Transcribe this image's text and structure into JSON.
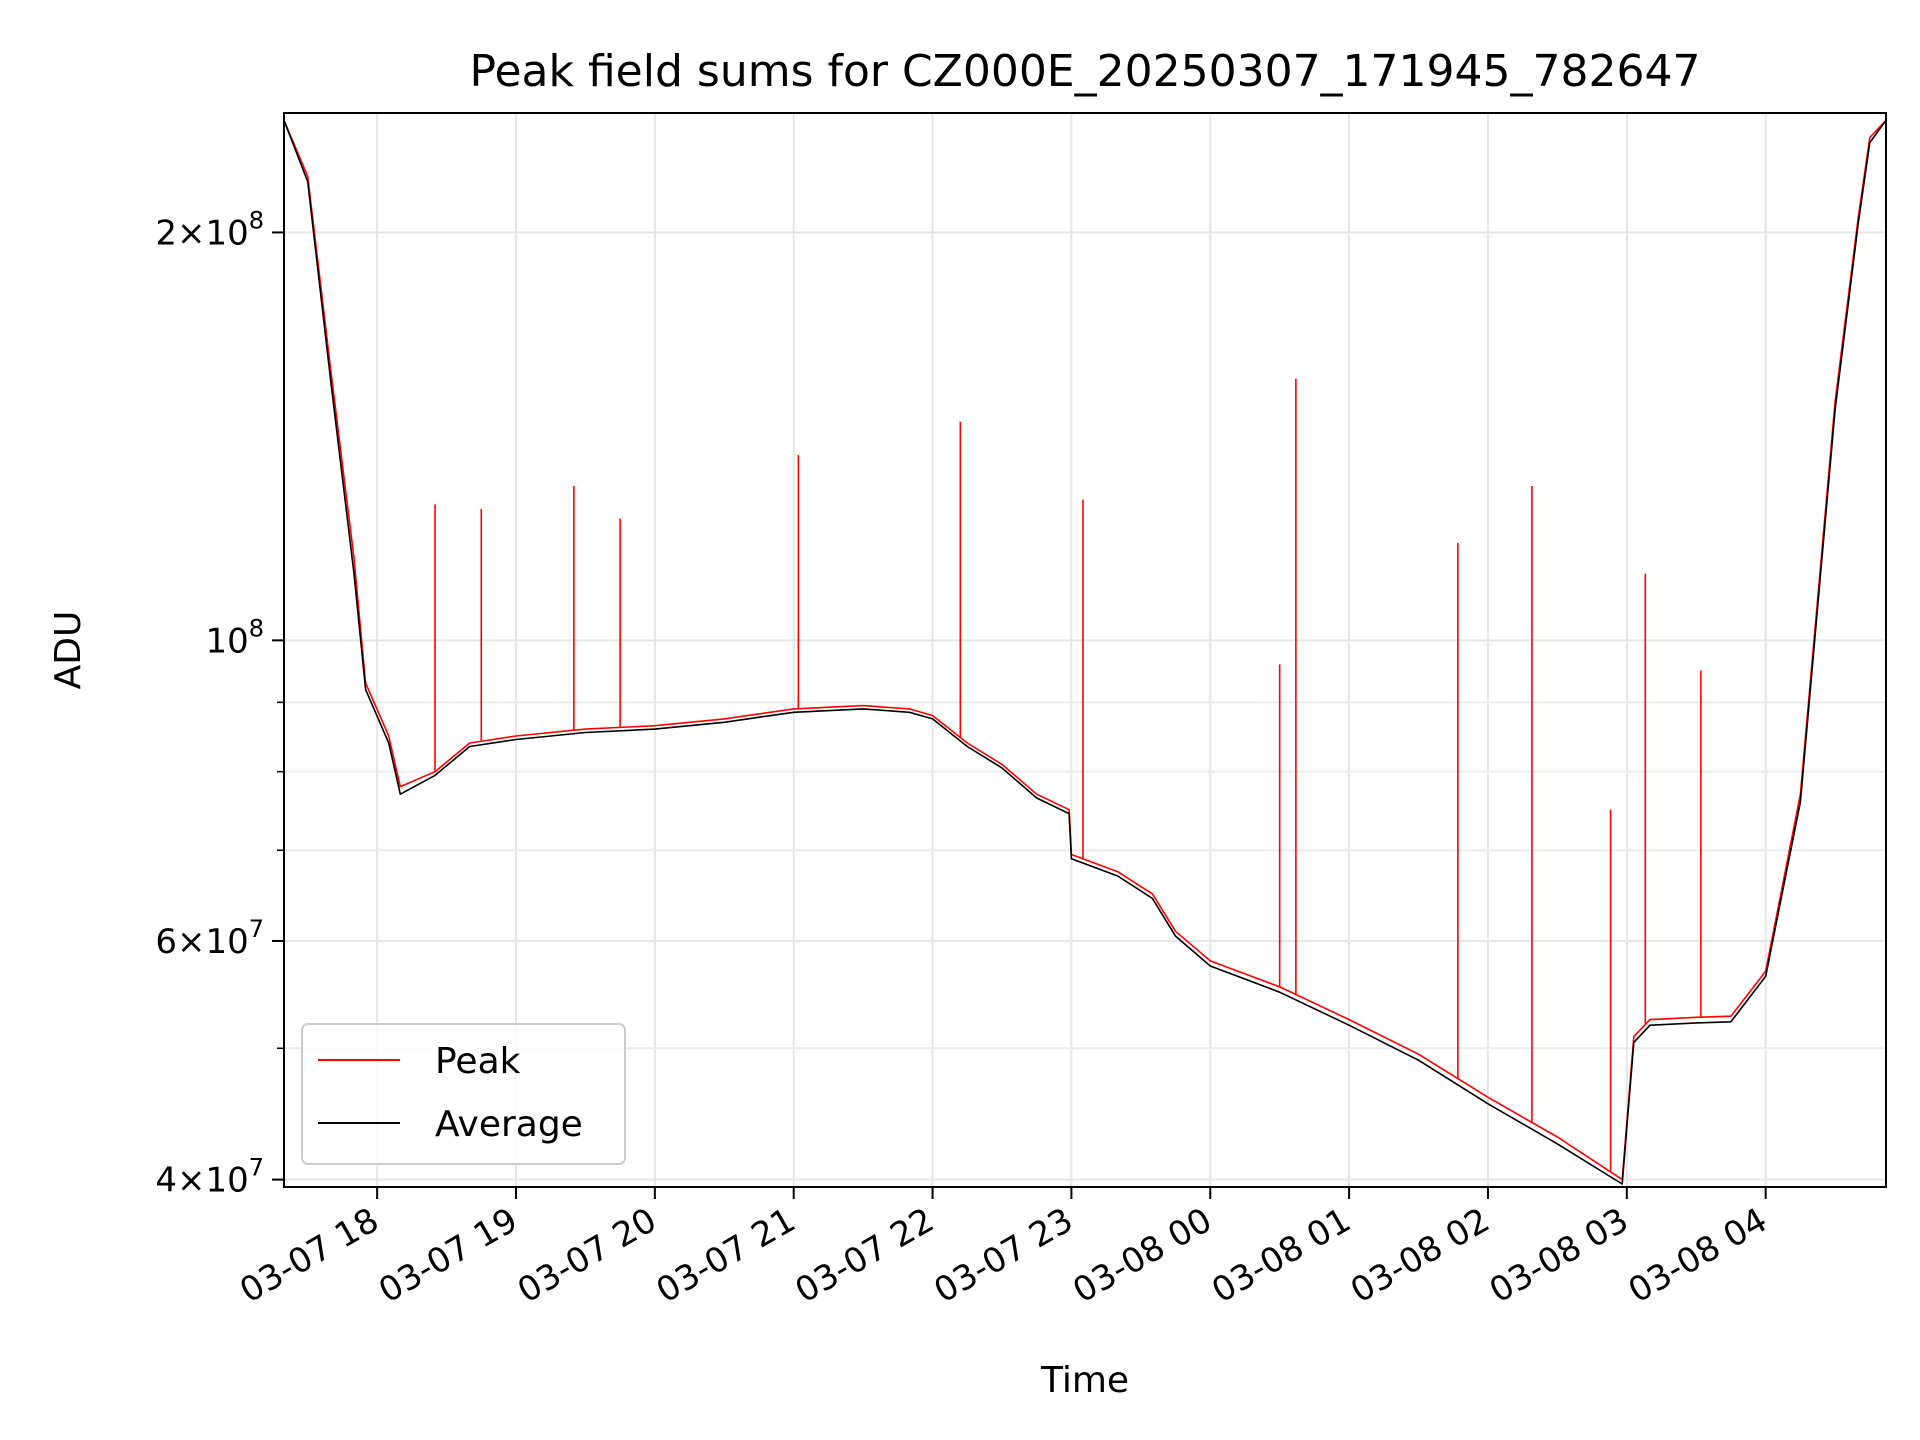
{
  "chart_data": {
    "type": "line",
    "title": "Peak field sums for CZ000E_20250307_171945_782647",
    "xlabel": "Time",
    "ylabel": "ADU",
    "y_scale": "log",
    "ylim": [
      39500000,
      245000000
    ],
    "xlim": [
      "2025-03-07 17:19:45",
      "2025-03-08 04:52:00"
    ],
    "grid": true,
    "legend_position": "lower-left",
    "x_ticks": [
      "03-07 18",
      "03-07 19",
      "03-07 20",
      "03-07 21",
      "03-07 22",
      "03-07 23",
      "03-08 00",
      "03-08 01",
      "03-08 02",
      "03-08 03",
      "03-08 04"
    ],
    "y_ticks": [
      {
        "value": 200000000,
        "mantissa": "2",
        "exponent": "8"
      },
      {
        "value": 100000000,
        "mantissa": "",
        "exponent": "8"
      },
      {
        "value": 60000000,
        "mantissa": "6",
        "exponent": "7"
      },
      {
        "value": 40000000,
        "mantissa": "4",
        "exponent": "7"
      }
    ],
    "series": [
      {
        "name": "Peak",
        "color": "#ff0000",
        "x": [
          "2025-03-07 17:19:45",
          "2025-03-07 17:30:00",
          "2025-03-07 17:40:00",
          "2025-03-07 17:50:00",
          "2025-03-07 17:55:00",
          "2025-03-07 18:05:00",
          "2025-03-07 18:10:00",
          "2025-03-07 18:25:00",
          "2025-03-07 18:40:00",
          "2025-03-07 19:00:00",
          "2025-03-07 19:30:00",
          "2025-03-07 20:00:00",
          "2025-03-07 20:30:00",
          "2025-03-07 21:00:00",
          "2025-03-07 21:30:00",
          "2025-03-07 21:50:00",
          "2025-03-07 22:00:00",
          "2025-03-07 22:15:00",
          "2025-03-07 22:30:00",
          "2025-03-07 22:45:00",
          "2025-03-07 22:59:00",
          "2025-03-07 23:00:00",
          "2025-03-07 23:20:00",
          "2025-03-07 23:35:00",
          "2025-03-07 23:45:00",
          "2025-03-08 00:00:00",
          "2025-03-08 00:30:00",
          "2025-03-08 01:00:00",
          "2025-03-08 01:30:00",
          "2025-03-08 02:00:00",
          "2025-03-08 02:30:00",
          "2025-03-08 02:58:00",
          "2025-03-08 03:03:00",
          "2025-03-08 03:10:00",
          "2025-03-08 03:30:00",
          "2025-03-08 03:45:00",
          "2025-03-08 04:00:00",
          "2025-03-08 04:15:00",
          "2025-03-08 04:30:00",
          "2025-03-08 04:40:00",
          "2025-03-08 04:45:00",
          "2025-03-08 04:52:00"
        ],
        "y": [
          242000000,
          220000000,
          158000000,
          115000000,
          93000000,
          85000000,
          78000000,
          80000000,
          84000000,
          85000000,
          86000000,
          86500000,
          87500000,
          89000000,
          89500000,
          89000000,
          88000000,
          84000000,
          81000000,
          77000000,
          75000000,
          69500000,
          67500000,
          65000000,
          61000000,
          58000000,
          55500000,
          52500000,
          49500000,
          46000000,
          43000000,
          40000000,
          51000000,
          52500000,
          52700000,
          52800000,
          57000000,
          77000000,
          150000000,
          205000000,
          235000000,
          242000000
        ]
      },
      {
        "name": "Average",
        "color": "#000000",
        "x": [
          "2025-03-07 17:19:45",
          "2025-03-07 17:30:00",
          "2025-03-07 17:40:00",
          "2025-03-07 17:50:00",
          "2025-03-07 17:55:00",
          "2025-03-07 18:05:00",
          "2025-03-07 18:10:00",
          "2025-03-07 18:25:00",
          "2025-03-07 18:40:00",
          "2025-03-07 19:00:00",
          "2025-03-07 19:30:00",
          "2025-03-07 20:00:00",
          "2025-03-07 20:30:00",
          "2025-03-07 21:00:00",
          "2025-03-07 21:30:00",
          "2025-03-07 21:50:00",
          "2025-03-07 22:00:00",
          "2025-03-07 22:15:00",
          "2025-03-07 22:30:00",
          "2025-03-07 22:45:00",
          "2025-03-07 22:59:00",
          "2025-03-07 23:00:00",
          "2025-03-07 23:20:00",
          "2025-03-07 23:35:00",
          "2025-03-07 23:45:00",
          "2025-03-08 00:00:00",
          "2025-03-08 00:30:00",
          "2025-03-08 01:00:00",
          "2025-03-08 01:30:00",
          "2025-03-08 02:00:00",
          "2025-03-08 02:30:00",
          "2025-03-08 02:58:00",
          "2025-03-08 03:03:00",
          "2025-03-08 03:10:00",
          "2025-03-08 03:30:00",
          "2025-03-08 03:45:00",
          "2025-03-08 04:00:00",
          "2025-03-08 04:15:00",
          "2025-03-08 04:30:00",
          "2025-03-08 04:40:00",
          "2025-03-08 04:45:00",
          "2025-03-08 04:52:00"
        ],
        "y": [
          242000000,
          218000000,
          155000000,
          112000000,
          92000000,
          84000000,
          77000000,
          79500000,
          83500000,
          84500000,
          85500000,
          86000000,
          87000000,
          88500000,
          89000000,
          88500000,
          87500000,
          83500000,
          80500000,
          76500000,
          74500000,
          69000000,
          67000000,
          64500000,
          60500000,
          57500000,
          55000000,
          52000000,
          49000000,
          45500000,
          42500000,
          39700000,
          50500000,
          52000000,
          52200000,
          52300000,
          56500000,
          76000000,
          148000000,
          203000000,
          233000000,
          242000000
        ]
      }
    ],
    "spikes": [
      {
        "x": "2025-03-07 18:25:00",
        "y": 126000000
      },
      {
        "x": "2025-03-07 18:45:00",
        "y": 125000000
      },
      {
        "x": "2025-03-07 19:25:00",
        "y": 130000000
      },
      {
        "x": "2025-03-07 19:45:00",
        "y": 123000000
      },
      {
        "x": "2025-03-07 21:02:00",
        "y": 137000000
      },
      {
        "x": "2025-03-07 22:12:00",
        "y": 145000000
      },
      {
        "x": "2025-03-07 23:05:00",
        "y": 127000000
      },
      {
        "x": "2025-03-08 00:30:00",
        "y": 96000000
      },
      {
        "x": "2025-03-08 00:37:00",
        "y": 156000000
      },
      {
        "x": "2025-03-08 01:47:00",
        "y": 118000000
      },
      {
        "x": "2025-03-08 02:19:00",
        "y": 130000000
      },
      {
        "x": "2025-03-08 02:53:00",
        "y": 75000000
      },
      {
        "x": "2025-03-08 03:08:00",
        "y": 112000000
      },
      {
        "x": "2025-03-08 03:32:00",
        "y": 95000000
      }
    ]
  }
}
